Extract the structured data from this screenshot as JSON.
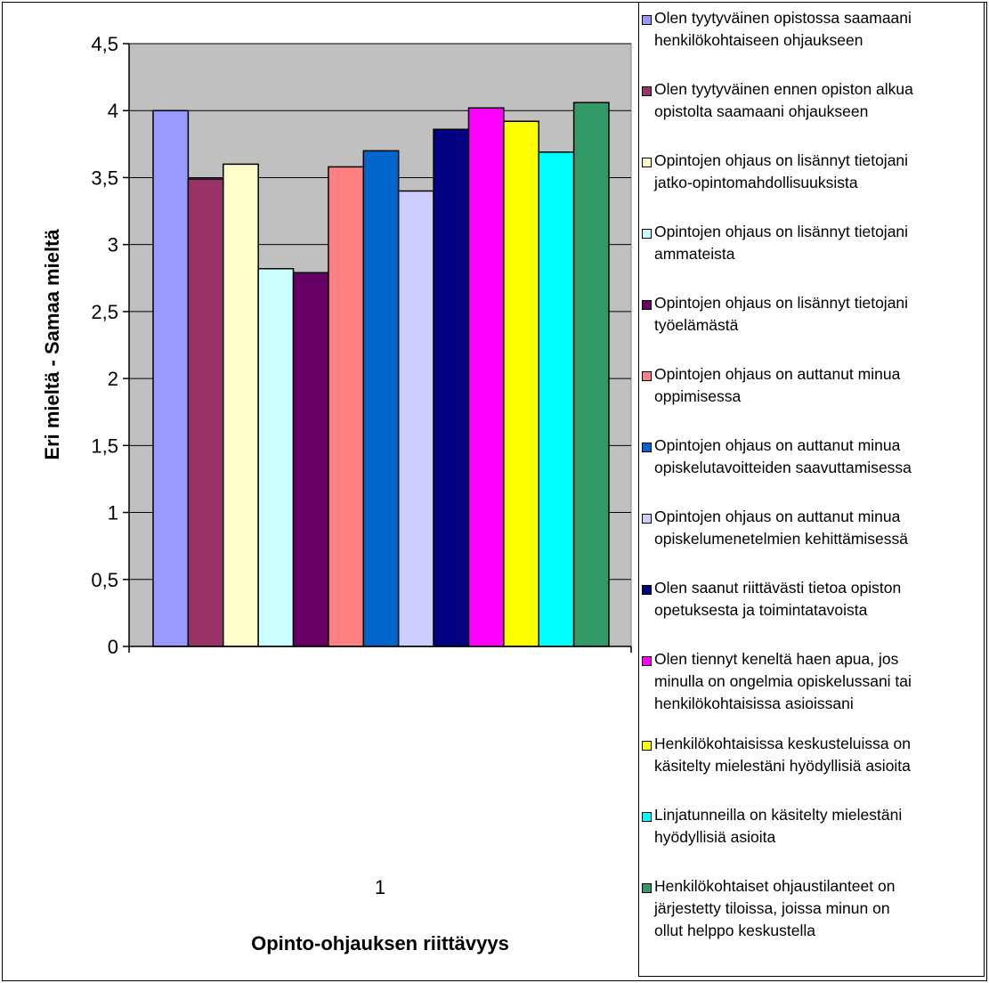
{
  "chart_data": {
    "type": "bar",
    "categories": [
      "1"
    ],
    "xlabel": "Opinto-ohjauksen riittävyys",
    "ylabel": "Eri mieltä - Samaa mieltä",
    "ylim": [
      0,
      4.5
    ],
    "yticks": [
      "0",
      "0,5",
      "1",
      "1,5",
      "2",
      "2,5",
      "3",
      "3,5",
      "4",
      "4,5"
    ],
    "grid": "horizontal major gridlines",
    "plot_background": "#c0c0c0",
    "legend_position": "right",
    "series": [
      {
        "name": "Olen tyytyväinen opistossa saamaani\nhenkilökohtaiseen ohjaukseen",
        "values": [
          4.0
        ],
        "color": "#9999ff"
      },
      {
        "name": "Olen tyytyväinen ennen opiston alkua\nopistolta saamaani ohjaukseen",
        "values": [
          3.49
        ],
        "color": "#993366"
      },
      {
        "name": "Opintojen ohjaus on lisännyt tietojani\njatko-opintomahdollisuuksista",
        "values": [
          3.6
        ],
        "color": "#ffffcc"
      },
      {
        "name": "Opintojen ohjaus on lisännyt tietojani\nammateista",
        "values": [
          2.82
        ],
        "color": "#ccffff"
      },
      {
        "name": "Opintojen ohjaus on lisännyt tietojani\ntyöelämästä",
        "values": [
          2.79
        ],
        "color": "#660066"
      },
      {
        "name": "Opintojen ohjaus on auttanut minua\noppimisessa",
        "values": [
          3.58
        ],
        "color": "#ff8080"
      },
      {
        "name": "Opintojen ohjaus on auttanut minua\nopiskelutavoitteiden saavuttamisessa",
        "values": [
          3.7
        ],
        "color": "#0066cc"
      },
      {
        "name": "Opintojen ohjaus on auttanut minua\nopiskelumenetelmien kehittämisessä",
        "values": [
          3.4
        ],
        "color": "#ccccff"
      },
      {
        "name": "Olen saanut riittävästi tietoa opiston\nopetuksesta ja toimintatavoista",
        "values": [
          3.86
        ],
        "color": "#000080"
      },
      {
        "name": "Olen tiennyt keneltä haen apua, jos\nminulla on ongelmia opiskelussani  tai\nhenkilökohtaisissa asioissani",
        "values": [
          4.02
        ],
        "color": "#ff00ff"
      },
      {
        "name": "Henkilökohtaisissa keskusteluissa on\nkäsitelty mielestäni hyödyllisiä asioita",
        "values": [
          3.92
        ],
        "color": "#ffff00"
      },
      {
        "name": "Linjatunneilla on käsitelty mielestäni\nhyödyllisiä asioita",
        "values": [
          3.69
        ],
        "color": "#00ffff"
      },
      {
        "name": "Henkilökohtaiset ohjaustilanteet on\njärjestetty tiloissa, joissa minun on\nollut helppo keskustella",
        "values": [
          4.06
        ],
        "color": "#339966"
      }
    ]
  }
}
